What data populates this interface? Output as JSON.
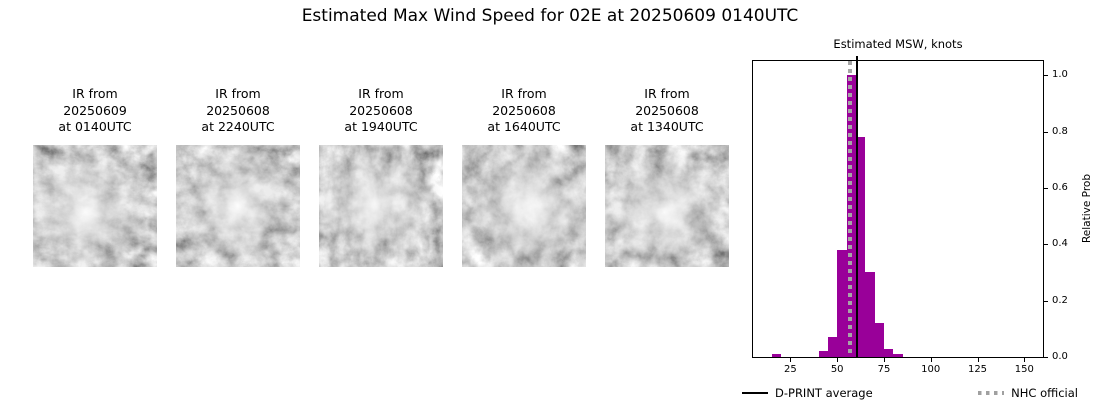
{
  "title": "Estimated Max Wind Speed for 02E at 20250609 0140UTC",
  "panels": [
    {
      "l1": "IR from",
      "l2": "20250609",
      "l3": "at 0140UTC"
    },
    {
      "l1": "IR from",
      "l2": "20250608",
      "l3": "at 2240UTC"
    },
    {
      "l1": "IR from",
      "l2": "20250608",
      "l3": "at 1940UTC"
    },
    {
      "l1": "IR from",
      "l2": "20250608",
      "l3": "at 1640UTC"
    },
    {
      "l1": "IR from",
      "l2": "20250608",
      "l3": "at 1340UTC"
    }
  ],
  "chart_data": {
    "type": "bar",
    "title": "Estimated MSW, knots",
    "ylabel": "Relative Prob",
    "xlim": [
      5,
      160
    ],
    "ylim": [
      0,
      1.05
    ],
    "grid": false,
    "legend_position": "bottom",
    "bin_width": 5,
    "bins": [
      {
        "x0": 15,
        "v": 0.01
      },
      {
        "x0": 40,
        "v": 0.02
      },
      {
        "x0": 45,
        "v": 0.07
      },
      {
        "x0": 50,
        "v": 0.38
      },
      {
        "x0": 55,
        "v": 1.0
      },
      {
        "x0": 60,
        "v": 0.78
      },
      {
        "x0": 65,
        "v": 0.3
      },
      {
        "x0": 70,
        "v": 0.12
      },
      {
        "x0": 75,
        "v": 0.03
      },
      {
        "x0": 80,
        "v": 0.01
      }
    ],
    "bar_color": "#990099",
    "dprint_average_knots": 60.5,
    "nhc_official_knots": 57,
    "xticks": [
      {
        "v": 25,
        "label": "25"
      },
      {
        "v": 50,
        "label": "50"
      },
      {
        "v": 75,
        "label": "75"
      },
      {
        "v": 100,
        "label": "100"
      },
      {
        "v": 125,
        "label": "125"
      },
      {
        "v": 150,
        "label": "150"
      }
    ],
    "yticks": [
      {
        "v": 0.0,
        "label": "0.0"
      },
      {
        "v": 0.2,
        "label": "0.2"
      },
      {
        "v": 0.4,
        "label": "0.4"
      },
      {
        "v": 0.6,
        "label": "0.6"
      },
      {
        "v": 0.8,
        "label": "0.8"
      },
      {
        "v": 1.0,
        "label": "1.0"
      }
    ],
    "legend": [
      {
        "label": "D-PRINT average",
        "style": "solid-black",
        "color": "#000000"
      },
      {
        "label": "NHC official",
        "style": "dotted-gray",
        "color": "#a0a0a0"
      }
    ]
  }
}
